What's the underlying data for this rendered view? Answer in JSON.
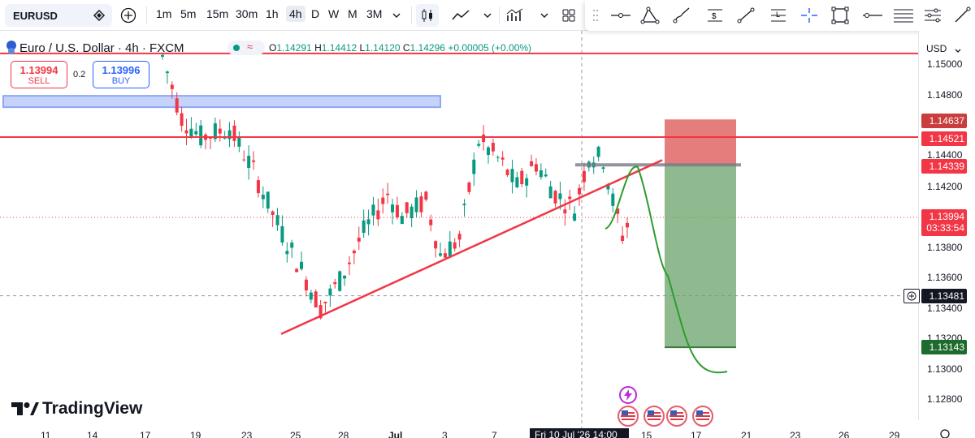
{
  "toolbar": {
    "symbol": "EURUSD",
    "timeframes": [
      "1m",
      "5m",
      "15m",
      "30m",
      "1h",
      "4h",
      "D",
      "W",
      "M",
      "3M"
    ],
    "active_timeframe": "4h"
  },
  "legend": {
    "title": "Euro / U.S. Dollar · 4h · FXCM",
    "open_label": "O",
    "open": "1.14291",
    "high_label": "H",
    "high": "1.14412",
    "low_label": "L",
    "low": "1.14120",
    "close_label": "C",
    "close": "1.14296",
    "change": "+0.00005 (+0.00%)"
  },
  "trade": {
    "sell_price": "1.13994",
    "sell_label": "SELL",
    "spread": "0.2",
    "buy_price": "1.13996",
    "buy_label": "BUY"
  },
  "price_axis": {
    "currency": "USD",
    "ticks": [
      "1.15000",
      "1.14800",
      "1.14400",
      "1.14200",
      "1.13800",
      "1.13600",
      "1.13400",
      "1.13200",
      "1.13000",
      "1.12800"
    ],
    "tags": {
      "take_profit_top": "1.14637",
      "resistance": "1.14521",
      "entry": "1.14339",
      "current_price": "1.13994",
      "countdown": "03:33:54",
      "crosshair": "1.13481",
      "stop_target": "1.13143"
    }
  },
  "time_axis": {
    "ticks": [
      "11",
      "14",
      "17",
      "19",
      "23",
      "25",
      "28",
      "Jul",
      "3",
      "7",
      "15",
      "17",
      "21",
      "23",
      "26",
      "29"
    ],
    "highlight": "Fri 10 Jul '26 14:00"
  },
  "branding": {
    "logo_text": "TradingView"
  },
  "colors": {
    "bull": "#089981",
    "bear": "#f23645",
    "accent": "#2962ff",
    "zone_red": "#e06666",
    "zone_green": "#6aa36a",
    "highlight_zone": "#c5d3fb"
  },
  "icons": [
    "search-icon",
    "add-icon",
    "chevron-down-icon",
    "candles-icon",
    "line-chart-icon",
    "indicators-icon",
    "layout-icon",
    "trendline-icon",
    "fib-icon",
    "brush-icon",
    "text-icon",
    "crosshair-icon",
    "rectangle-icon",
    "horizontal-line-icon",
    "parallel-channel-icon",
    "pencil-icon",
    "settings-icon",
    "lightning-icon",
    "us-flag-icon"
  ],
  "chart_data": {
    "type": "candlestick",
    "symbol": "EURUSD",
    "interval": "4h",
    "ylim": [
      1.1265,
      1.1515
    ],
    "drawings": {
      "resistance_line": 1.14521,
      "entry_line": 1.14339,
      "top_red_line": 1.1507,
      "supply_zone": [
        1.1468,
        1.1476
      ],
      "short_position": {
        "stop": 1.14637,
        "entry": 1.14339,
        "target": 1.13143
      },
      "trendline": {
        "from": 1.1323,
        "to": 1.1437
      }
    },
    "current_price": 1.13994,
    "crosshair_price": 1.13481
  }
}
